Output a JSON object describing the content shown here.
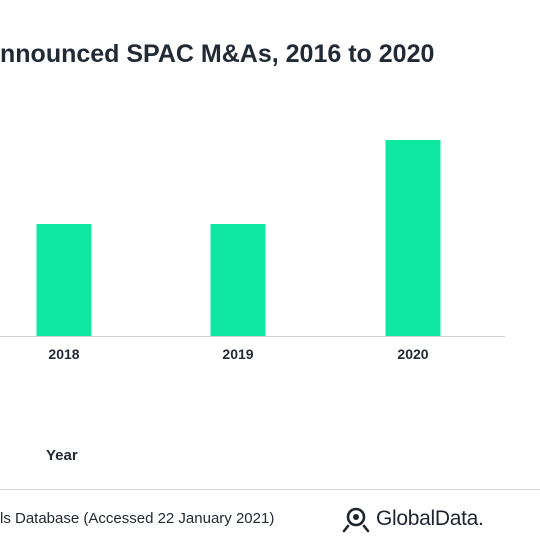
{
  "chart_data": {
    "type": "bar",
    "title": "nnounced SPAC M&As, 2016 to 2020",
    "categories": [
      "2018",
      "2019",
      "2020"
    ],
    "values": [
      60,
      60,
      105
    ],
    "xlabel": "Year",
    "ylabel": "",
    "ylim": [
      0,
      120
    ],
    "grid": false,
    "bar_color": "#0ee8a0"
  },
  "footer": {
    "source": "ls Database (Accessed 22 January 2021)",
    "logo_text": "GlobalData."
  },
  "colors": {
    "text": "#222a35",
    "bar": "#0ee8a0",
    "axis": "#cfcfcf"
  }
}
